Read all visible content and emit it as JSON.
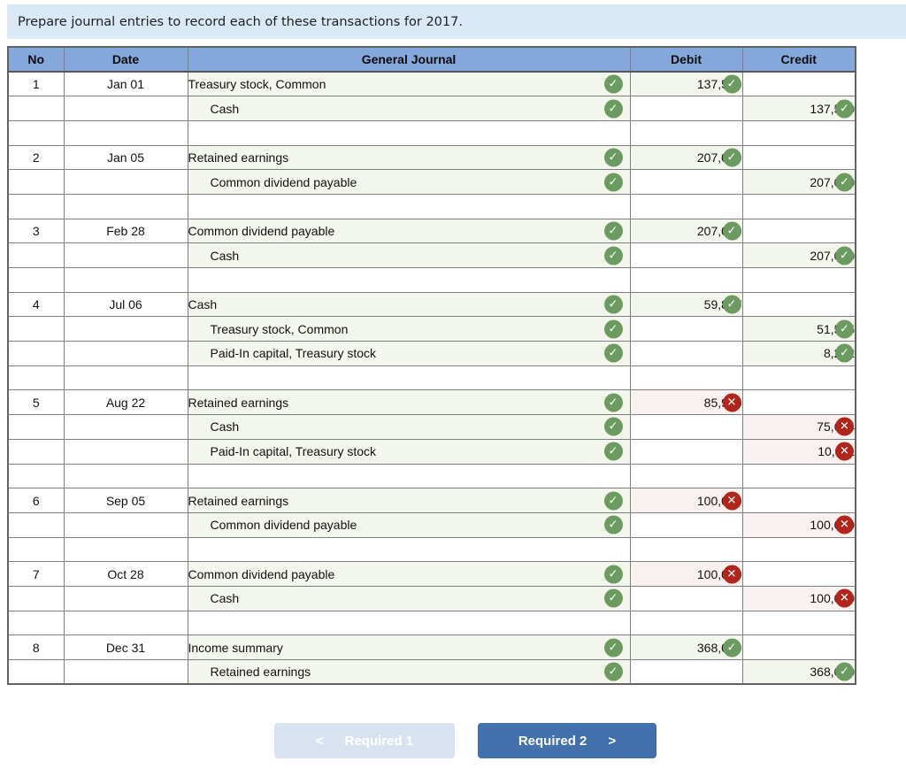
{
  "instruction": "Prepare journal entries to record each of these transactions for 2017.",
  "icons": {
    "check": "✓",
    "cross": "✕",
    "chevron_left": "<",
    "chevron_right": ">"
  },
  "colors": {
    "banner_bg": "#d9e9f8",
    "header_bg": "#85a8dc",
    "correct_green": "#6b9b60",
    "incorrect_red": "#b0261c",
    "filled_cell_bg": "#f3f6ed",
    "error_cell_bg": "#f9f0f0",
    "primary_button_bg": "#4170ac",
    "disabled_button_bg": "#d8e2f1"
  },
  "table": {
    "headers": [
      "No",
      "Date",
      "General Journal",
      "Debit",
      "Credit"
    ],
    "entries": [
      {
        "no": "1",
        "date": "Jan 01",
        "lines": [
          {
            "account": "Treasury stock, Common",
            "indent": false,
            "account_status": "correct",
            "debit": "137,500",
            "debit_status": "correct",
            "credit": "",
            "credit_status": null
          },
          {
            "account": "Cash",
            "indent": true,
            "account_status": "correct",
            "debit": "",
            "debit_status": null,
            "credit": "137,500",
            "credit_status": "correct"
          }
        ]
      },
      {
        "no": "2",
        "date": "Jan 05",
        "lines": [
          {
            "account": "Retained earnings",
            "indent": false,
            "account_status": "correct",
            "debit": "207,000",
            "debit_status": "correct",
            "credit": "",
            "credit_status": null
          },
          {
            "account": "Common dividend payable",
            "indent": true,
            "account_status": "correct",
            "debit": "",
            "debit_status": null,
            "credit": "207,000",
            "credit_status": "correct"
          }
        ]
      },
      {
        "no": "3",
        "date": "Feb 28",
        "lines": [
          {
            "account": "Common dividend payable",
            "indent": false,
            "account_status": "correct",
            "debit": "207,000",
            "debit_status": "correct",
            "credit": "",
            "credit_status": null
          },
          {
            "account": "Cash",
            "indent": true,
            "account_status": "correct",
            "debit": "",
            "debit_status": null,
            "credit": "207,000",
            "credit_status": "correct"
          }
        ]
      },
      {
        "no": "4",
        "date": "Jul 06",
        "lines": [
          {
            "account": "Cash",
            "indent": false,
            "account_status": "correct",
            "debit": "59,827",
            "debit_status": "correct",
            "credit": "",
            "credit_status": null
          },
          {
            "account": "Treasury stock, Common",
            "indent": true,
            "account_status": "correct",
            "debit": "",
            "debit_status": null,
            "credit": "51,575",
            "credit_status": "correct"
          },
          {
            "account": "Paid-In capital, Treasury stock",
            "indent": true,
            "account_status": "correct",
            "debit": "",
            "debit_status": null,
            "credit": "8,252",
            "credit_status": "correct"
          }
        ]
      },
      {
        "no": "5",
        "date": "Aug 22",
        "lines": [
          {
            "account": "Retained earnings",
            "indent": false,
            "account_status": "correct",
            "debit": "85,925",
            "debit_status": "incorrect",
            "credit": "",
            "credit_status": null
          },
          {
            "account": "Cash",
            "indent": true,
            "account_status": "correct",
            "debit": "",
            "debit_status": null,
            "credit": "75,614",
            "credit_status": "incorrect"
          },
          {
            "account": "Paid-In capital, Treasury stock",
            "indent": true,
            "account_status": "correct",
            "debit": "",
            "debit_status": null,
            "credit": "10,311",
            "credit_status": "incorrect"
          }
        ]
      },
      {
        "no": "6",
        "date": "Sep 05",
        "lines": [
          {
            "account": "Retained earnings",
            "indent": false,
            "account_status": "correct",
            "debit": "100,000",
            "debit_status": "incorrect",
            "credit": "",
            "credit_status": null
          },
          {
            "account": "Common dividend payable",
            "indent": true,
            "account_status": "correct",
            "debit": "",
            "debit_status": null,
            "credit": "100,000",
            "credit_status": "incorrect"
          }
        ]
      },
      {
        "no": "7",
        "date": "Oct 28",
        "lines": [
          {
            "account": "Common dividend payable",
            "indent": false,
            "account_status": "correct",
            "debit": "100,000",
            "debit_status": "incorrect",
            "credit": "",
            "credit_status": null
          },
          {
            "account": "Cash",
            "indent": true,
            "account_status": "correct",
            "debit": "",
            "debit_status": null,
            "credit": "100,000",
            "credit_status": "incorrect"
          }
        ]
      },
      {
        "no": "8",
        "date": "Dec 31",
        "lines": [
          {
            "account": "Income summary",
            "indent": false,
            "account_status": "correct",
            "debit": "368,000",
            "debit_status": "correct",
            "credit": "",
            "credit_status": null
          },
          {
            "account": "Retained earnings",
            "indent": true,
            "account_status": "correct",
            "debit": "",
            "debit_status": null,
            "credit": "368,000",
            "credit_status": "correct"
          }
        ]
      }
    ]
  },
  "footer": {
    "required1_label": "Required 1",
    "required1_disabled": true,
    "required2_label": "Required 2"
  }
}
